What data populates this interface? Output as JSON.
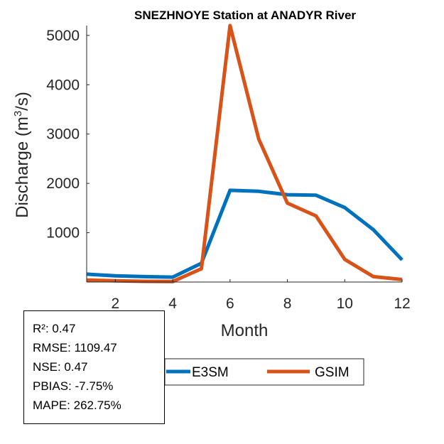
{
  "chart_data": {
    "type": "line",
    "title": "SNEZHNOYE  Station at  ANADYR  River",
    "xlabel": "Month",
    "ylabel": {
      "prefix": "Discharge (m",
      "sup": "3",
      "suffix": "/s)"
    },
    "x": [
      1,
      2,
      3,
      4,
      5,
      6,
      7,
      8,
      9,
      10,
      11,
      12
    ],
    "xlim": [
      1,
      12
    ],
    "ylim": [
      0,
      5200
    ],
    "xticks": [
      "2",
      "4",
      "6",
      "8",
      "10",
      "12"
    ],
    "yticks": [
      "1000",
      "2000",
      "3000",
      "4000",
      "5000"
    ],
    "grid": false,
    "legend_position": "bottom-center",
    "series": [
      {
        "name": "E3SM",
        "color": "#0072BD",
        "values": [
          160,
          125,
          110,
          100,
          380,
          1860,
          1840,
          1770,
          1760,
          1510,
          1060,
          450
        ]
      },
      {
        "name": "GSIM",
        "color": "#D95319",
        "values": [
          40,
          25,
          15,
          10,
          270,
          5200,
          2900,
          1600,
          1340,
          460,
          110,
          50
        ]
      }
    ]
  },
  "stats": {
    "r2": "R²: 0.47",
    "rmse": "RMSE: 1109.47",
    "nse": "NSE: 0.47",
    "pbias": "PBIAS: -7.75%",
    "mape": "MAPE: 262.75%"
  }
}
